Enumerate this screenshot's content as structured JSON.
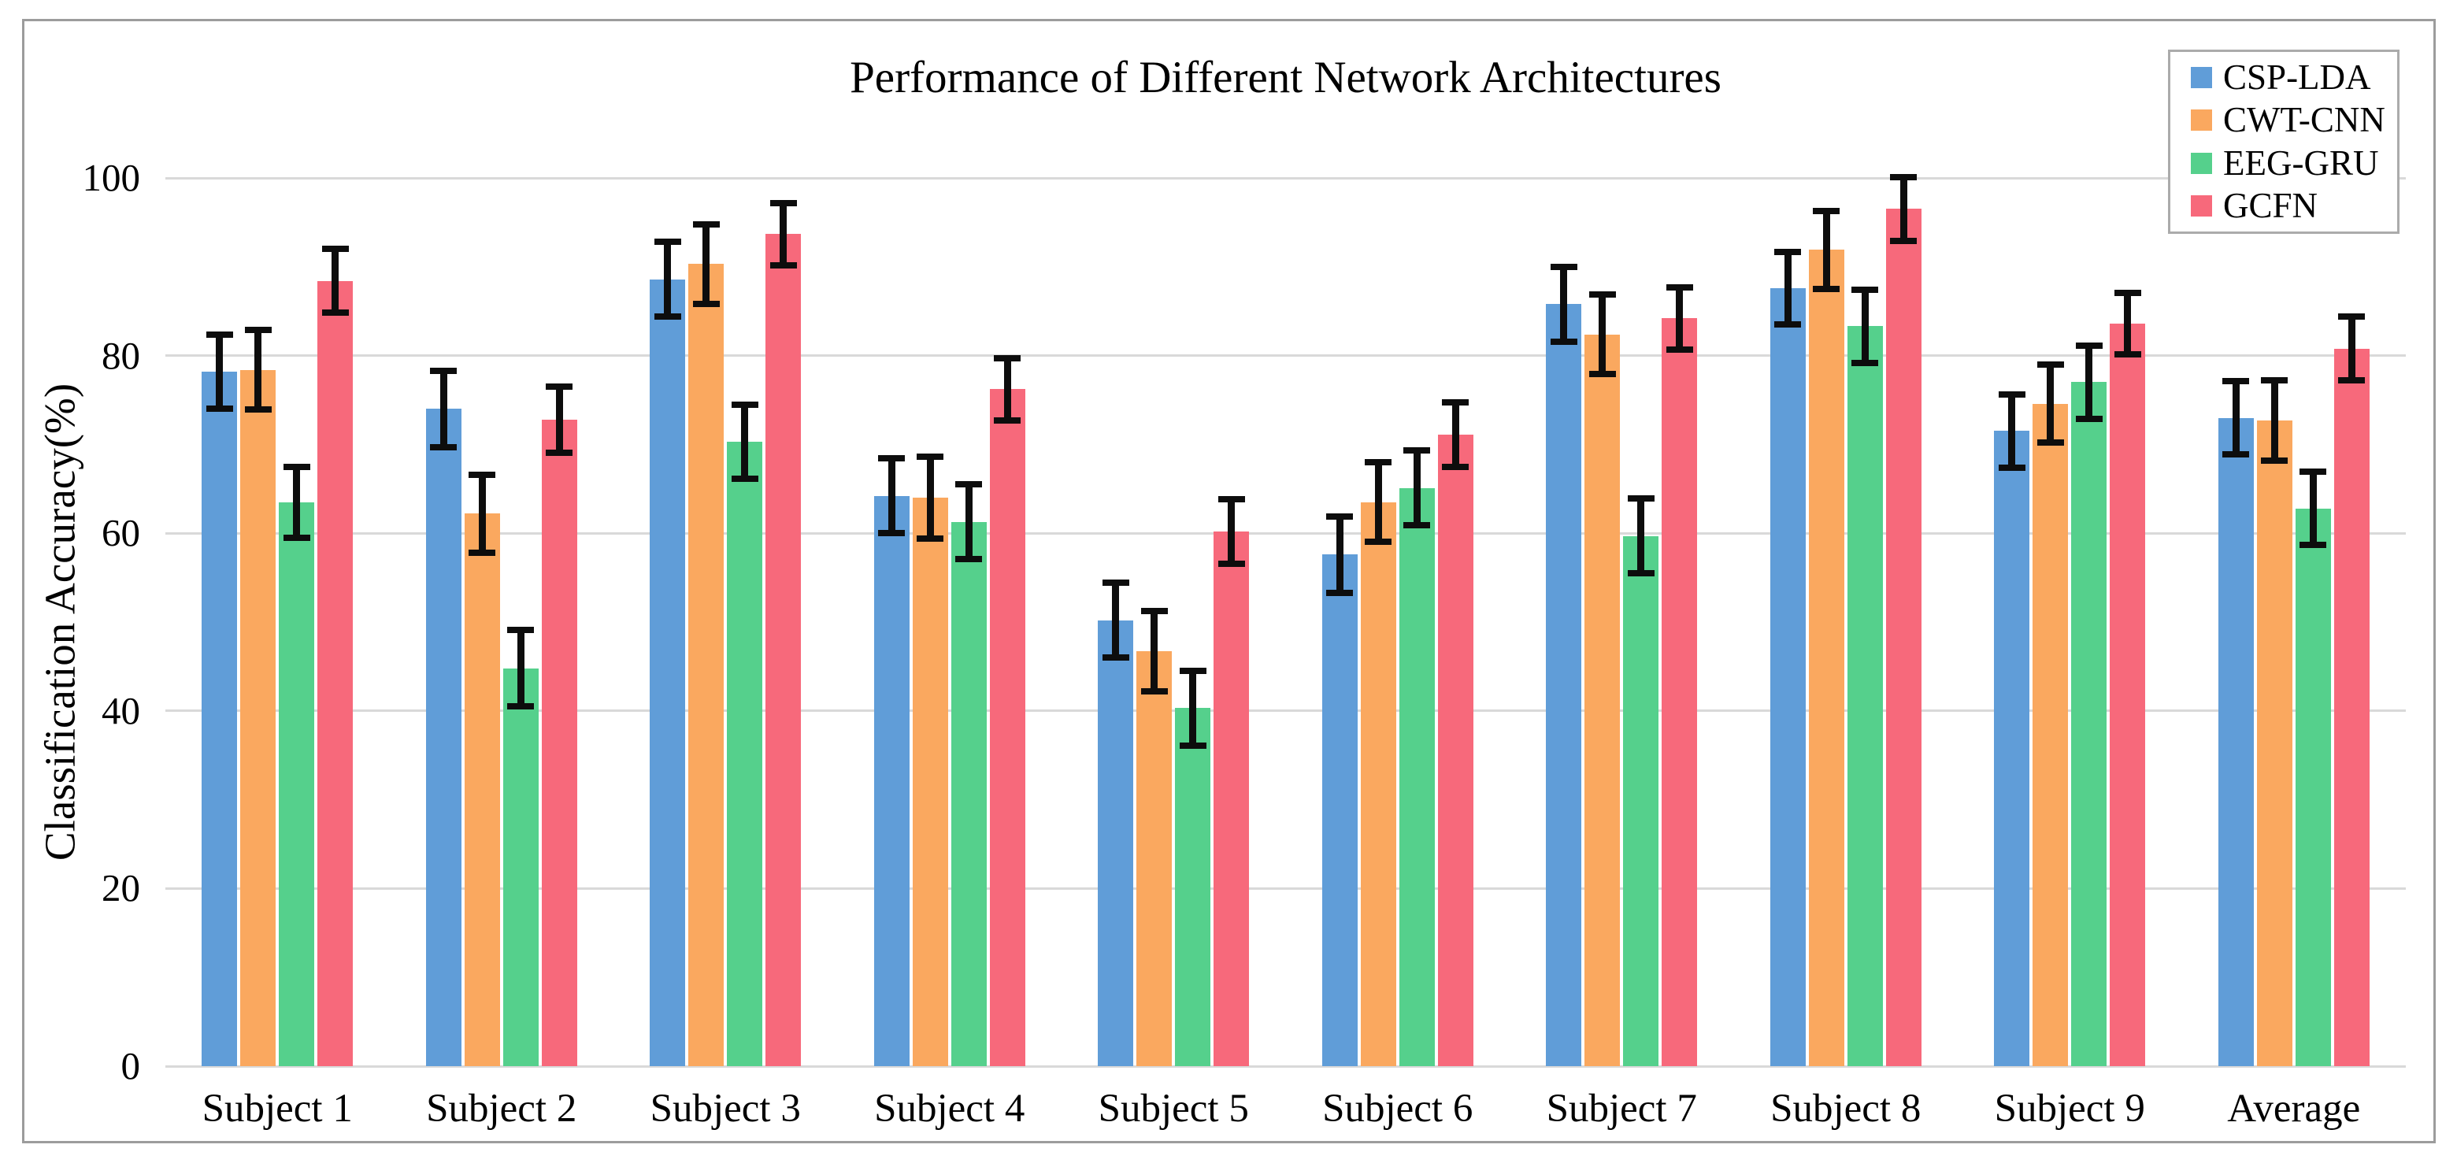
{
  "figure": {
    "title": "Performance of Different Network Architectures",
    "y_axis_label": "Classification Accuracy(%)"
  },
  "legend": {
    "position": "top-right",
    "items": [
      {
        "label": "CSP-LDA",
        "color": "#609dd8"
      },
      {
        "label": "CWT-CNN",
        "color": "#faa85f"
      },
      {
        "label": "EEG-GRU",
        "color": "#55d08c"
      },
      {
        "label": "GCFN",
        "color": "#f7697b"
      }
    ]
  },
  "chart_data": {
    "type": "bar",
    "title": "Performance of Different Network Architectures",
    "xlabel": "",
    "ylabel": "Classification Accuracy(%)",
    "ylim": [
      0,
      100
    ],
    "yticks": [
      0,
      20,
      40,
      60,
      80,
      100
    ],
    "grid": true,
    "error_bars": true,
    "error_bar_color": "#0d0d0d",
    "gridline_color": "#d9d9d9",
    "legend_position": "top-right",
    "categories": [
      "Subject 1",
      "Subject 2",
      "Subject 3",
      "Subject 4",
      "Subject 5",
      "Subject 6",
      "Subject 7",
      "Subject 8",
      "Subject 9",
      "Average"
    ],
    "series": [
      {
        "name": "CSP-LDA",
        "color": "#609dd8",
        "values": [
          78.2,
          74.0,
          88.6,
          64.2,
          50.2,
          57.6,
          85.8,
          87.6,
          71.5,
          73.0
        ],
        "errors": [
          4.2,
          4.3,
          4.2,
          4.2,
          4.2,
          4.3,
          4.2,
          4.1,
          4.1,
          4.1
        ]
      },
      {
        "name": "CWT-CNN",
        "color": "#faa85f",
        "values": [
          78.4,
          62.2,
          90.3,
          64.0,
          46.7,
          63.5,
          82.4,
          91.9,
          74.6,
          72.7
        ],
        "errors": [
          4.5,
          4.4,
          4.5,
          4.6,
          4.5,
          4.5,
          4.5,
          4.4,
          4.4,
          4.5
        ]
      },
      {
        "name": "EEG-GRU",
        "color": "#55d08c",
        "values": [
          63.5,
          44.8,
          70.3,
          61.3,
          40.3,
          65.1,
          59.7,
          83.3,
          77.0,
          62.8
        ],
        "errors": [
          4.0,
          4.3,
          4.2,
          4.2,
          4.2,
          4.2,
          4.2,
          4.1,
          4.1,
          4.1
        ]
      },
      {
        "name": "GCFN",
        "color": "#f7697b",
        "values": [
          88.4,
          72.8,
          93.7,
          76.2,
          60.2,
          71.1,
          84.2,
          96.5,
          83.6,
          80.8
        ],
        "errors": [
          3.6,
          3.7,
          3.5,
          3.5,
          3.6,
          3.6,
          3.5,
          3.6,
          3.5,
          3.6
        ]
      }
    ]
  }
}
